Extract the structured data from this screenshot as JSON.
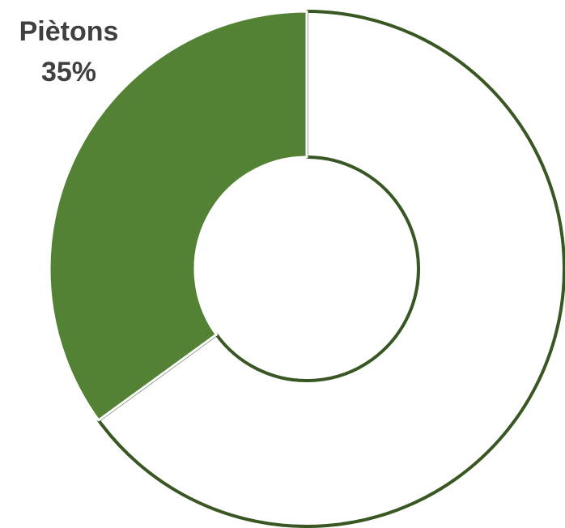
{
  "chart_data": {
    "type": "pie",
    "style": "donut",
    "slices": [
      {
        "label": "Piètons",
        "value": 35,
        "value_label": "35%",
        "fill": "#548235",
        "show_label": true
      },
      {
        "label": "",
        "value": 65,
        "value_label": "",
        "fill": "#ffffff",
        "show_label": false
      }
    ],
    "outline_color": "#385723",
    "title": "",
    "legend": "none"
  }
}
